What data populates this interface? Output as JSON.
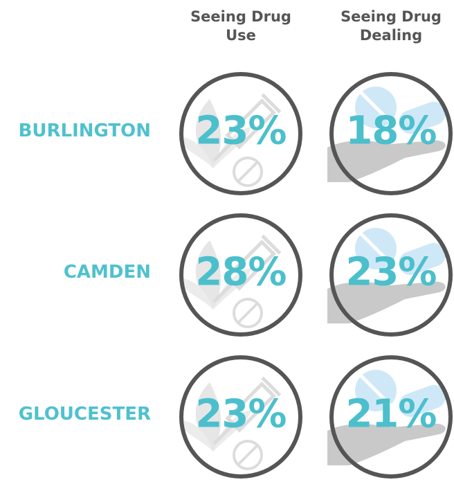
{
  "columns": [
    "Seeing Drug Use",
    "Seeing Drug Dealing"
  ],
  "rows": [
    {
      "label": "BURLINGTON",
      "values": [
        "23%",
        "18%"
      ]
    },
    {
      "label": "CAMDEN",
      "values": [
        "28%",
        "23%"
      ]
    },
    {
      "label": "GLOUCESTER",
      "values": [
        "23%",
        "21%"
      ]
    }
  ]
}
